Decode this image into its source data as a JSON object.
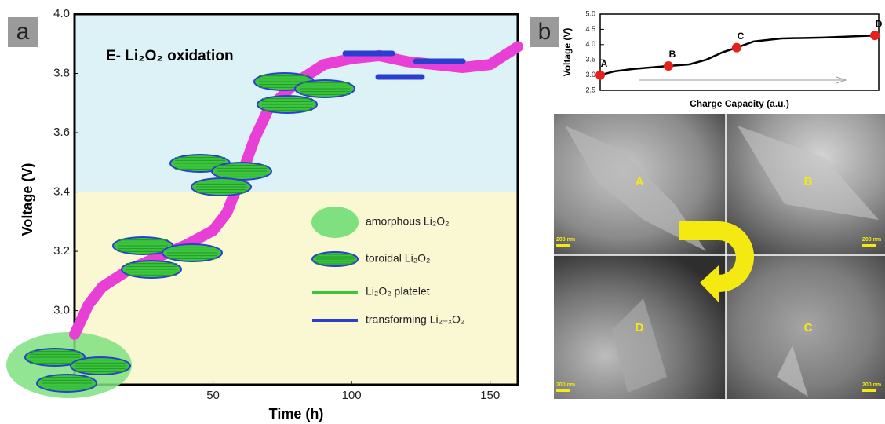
{
  "panel_labels": [
    "a",
    "b"
  ],
  "chart_data": [
    {
      "type": "line",
      "annotation": "E- Li₂O₂ oxidation",
      "x_label": "Time (h)",
      "y_label": "Voltage (V)",
      "x": [
        0,
        5,
        10,
        20,
        30,
        40,
        50,
        55,
        60,
        65,
        70,
        80,
        90,
        100,
        110,
        120,
        130,
        140,
        150,
        160
      ],
      "values": [
        2.92,
        3.02,
        3.08,
        3.14,
        3.18,
        3.22,
        3.27,
        3.33,
        3.45,
        3.58,
        3.68,
        3.77,
        3.83,
        3.85,
        3.86,
        3.84,
        3.83,
        3.82,
        3.83,
        3.89
      ],
      "color": "#e83fd6",
      "xlim": [
        0,
        160
      ],
      "xticks": [
        50,
        100,
        150
      ],
      "ylim": [
        2.75,
        4.0
      ],
      "yticks": [
        {
          "value": 3.0,
          "label": "3.0"
        },
        3.2,
        3.4,
        3.6,
        3.8,
        {
          "value": 4.0,
          "label": "4.0"
        }
      ],
      "regions": [
        {
          "from": 3.4,
          "to": 4.0,
          "color": "#ddf2f7"
        },
        {
          "from": 2.75,
          "to": 3.4,
          "color": "#faf7d3"
        }
      ],
      "legend_items": [
        "amorphous Li₂O₂",
        "toroidal Li₂O₂",
        "Li₂O₂ platelet",
        "transforming Li₂₋ₓO₂"
      ]
    },
    {
      "type": "line",
      "x_label": "Charge Capacity (a.u.)",
      "y_label": "Voltage (V)",
      "x": [
        0,
        5,
        12,
        24.5,
        32,
        38,
        44,
        49,
        55,
        65,
        80,
        98.6
      ],
      "values": [
        3.0,
        3.12,
        3.2,
        3.3,
        3.35,
        3.5,
        3.75,
        3.9,
        4.1,
        4.2,
        4.23,
        4.3
      ],
      "color": "#000000",
      "points": {
        "labels": [
          "A",
          "B",
          "C",
          "D"
        ],
        "x": [
          0,
          24.5,
          49,
          98.6
        ],
        "values": [
          3.0,
          3.3,
          3.9,
          4.3
        ],
        "color": "#e8201c"
      },
      "xlim": [
        0,
        100
      ],
      "ylim": [
        2.5,
        5.0
      ],
      "yticks": [
        2.5,
        {
          "value": 3.0,
          "label": "3.0"
        },
        3.5,
        {
          "value": 4.0,
          "label": "4.0"
        },
        4.5,
        {
          "value": 5.0,
          "label": "5.0"
        }
      ]
    }
  ],
  "sem_image": {
    "quadrant_labels": [
      "A",
      "B",
      "D",
      "C"
    ],
    "scale_bar": "200 nm"
  }
}
